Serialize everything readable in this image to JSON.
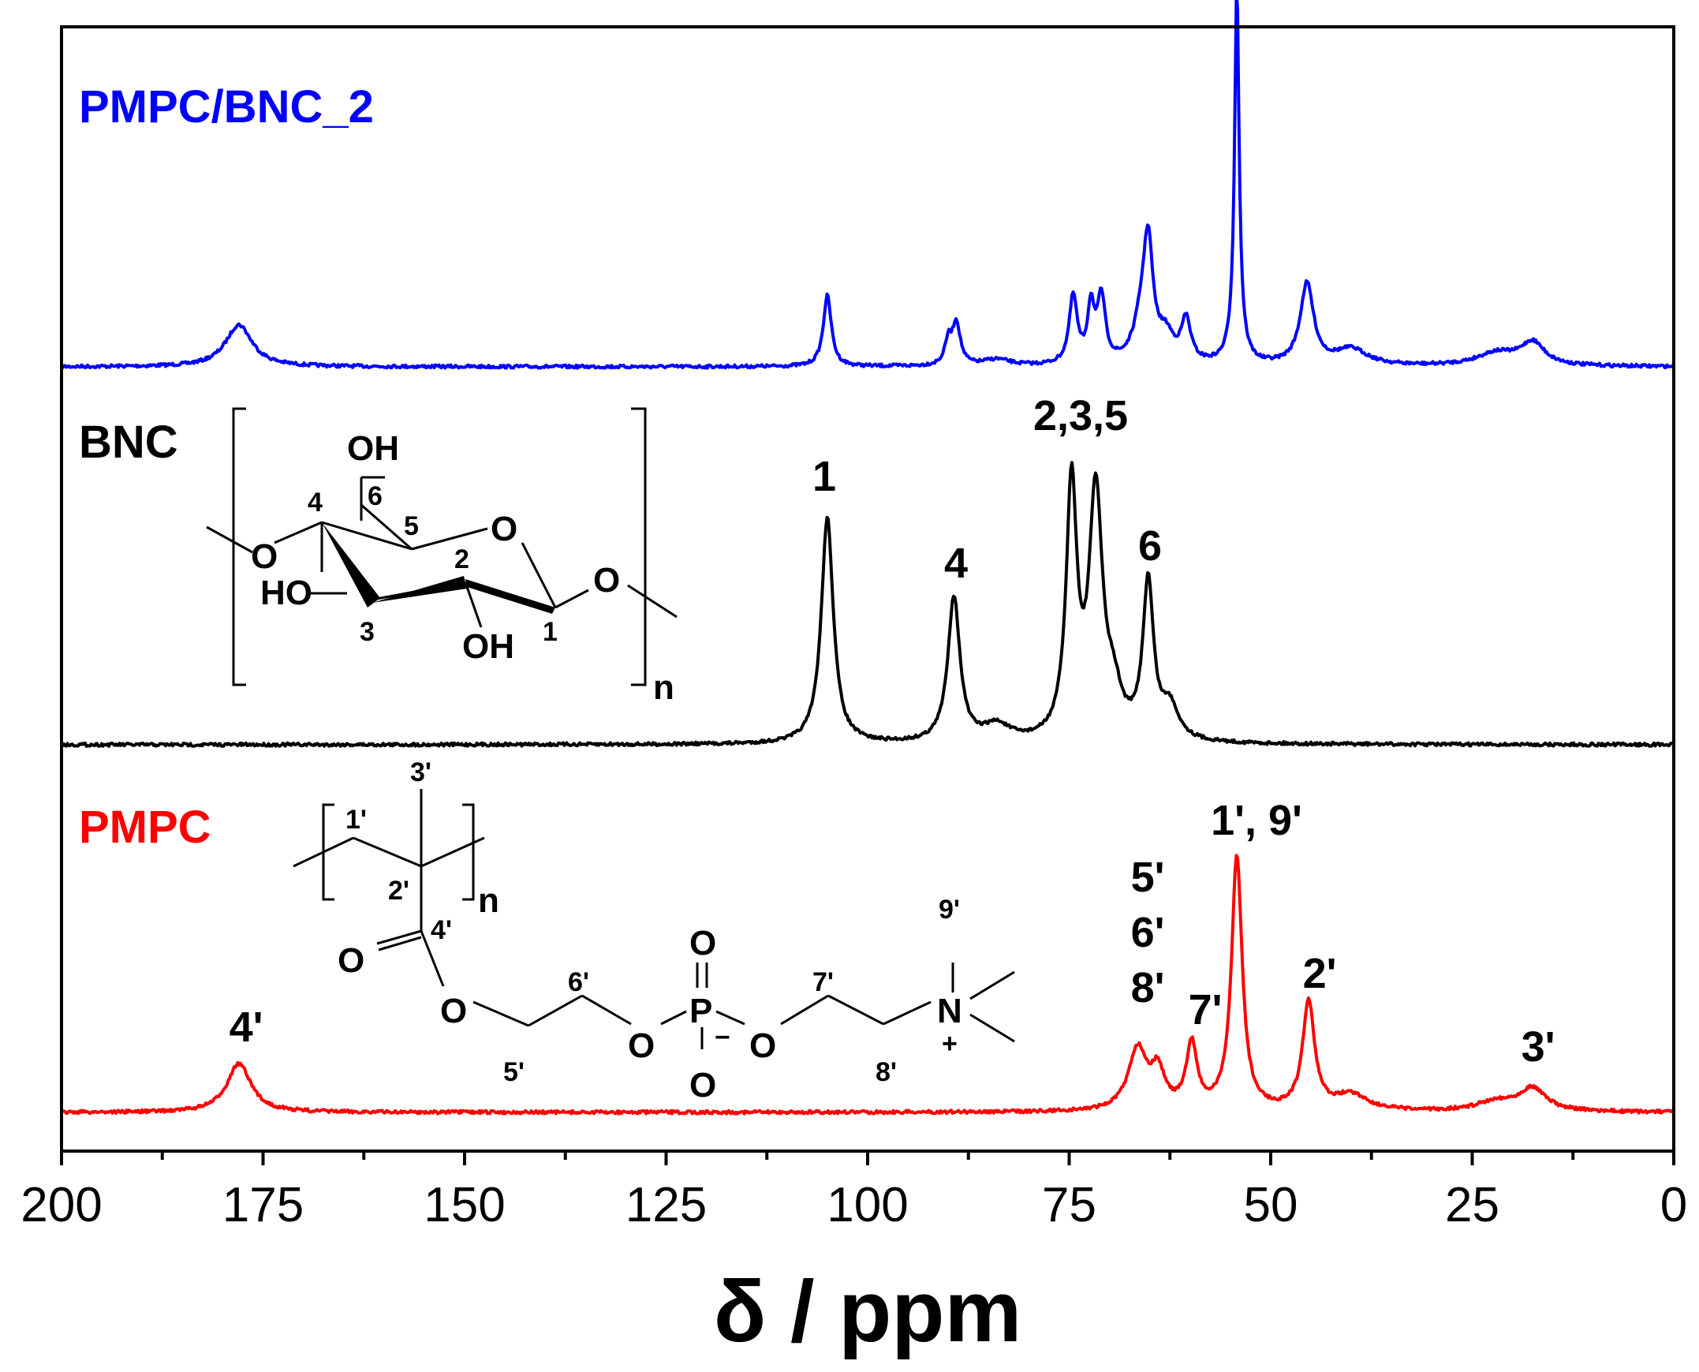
{
  "chart_data": {
    "type": "line",
    "xlabel": "δ / ppm",
    "xlim": [
      200,
      0
    ],
    "x_reversed": true,
    "xticks": [
      "200",
      "175",
      "150",
      "125",
      "100",
      "75",
      "50",
      "25",
      "0"
    ],
    "xtick_values": [
      200,
      175,
      150,
      125,
      100,
      75,
      50,
      25,
      0
    ],
    "y_axis_shown": false,
    "legend": "none",
    "series": [
      {
        "name": "PMPC/BNC_2",
        "color": "#0000ff",
        "peaks": [
          {
            "ppm": 178,
            "height": 0.13,
            "width": 2.0
          },
          {
            "ppm": 105,
            "height": 0.22,
            "width": 0.6
          },
          {
            "ppm": 89,
            "height": 0.13,
            "width": 0.6
          },
          {
            "ppm": 90,
            "height": 0.07,
            "width": 0.5
          },
          {
            "ppm": 84,
            "height": 0.02,
            "width": 2.0
          },
          {
            "ppm": 74.5,
            "height": 0.21,
            "width": 0.6
          },
          {
            "ppm": 72.3,
            "height": 0.17,
            "width": 0.5
          },
          {
            "ppm": 71.0,
            "height": 0.2,
            "width": 0.6
          },
          {
            "ppm": 66,
            "height": 0.12,
            "width": 1.2
          },
          {
            "ppm": 65.2,
            "height": 0.33,
            "width": 0.7
          },
          {
            "ppm": 63,
            "height": 0.08,
            "width": 1.2
          },
          {
            "ppm": 60.5,
            "height": 0.13,
            "width": 0.7
          },
          {
            "ppm": 54.2,
            "height": 0.98,
            "width": 0.3
          },
          {
            "ppm": 54.2,
            "height": 0.2,
            "width": 0.7
          },
          {
            "ppm": 45.5,
            "height": 0.25,
            "width": 1.0
          },
          {
            "ppm": 40,
            "height": 0.05,
            "width": 2.5
          },
          {
            "ppm": 22,
            "height": 0.04,
            "width": 3.0
          },
          {
            "ppm": 17.5,
            "height": 0.07,
            "width": 1.8
          }
        ]
      },
      {
        "name": "BNC",
        "color": "#000000",
        "peaks": [
          {
            "ppm": 105,
            "height": 0.7,
            "width": 0.9
          },
          {
            "ppm": 89.3,
            "height": 0.45,
            "width": 0.9
          },
          {
            "ppm": 84,
            "height": 0.05,
            "width": 2.0
          },
          {
            "ppm": 74.7,
            "height": 0.78,
            "width": 0.8
          },
          {
            "ppm": 71.7,
            "height": 0.75,
            "width": 1.0
          },
          {
            "ppm": 69.5,
            "height": 0.12,
            "width": 1.2
          },
          {
            "ppm": 65.2,
            "height": 0.48,
            "width": 0.8
          },
          {
            "ppm": 62.5,
            "height": 0.1,
            "width": 1.3
          }
        ]
      },
      {
        "name": "PMPC",
        "color": "#ff0000",
        "peaks": [
          {
            "ppm": 178,
            "height": 0.15,
            "width": 1.8
          },
          {
            "ppm": 66.5,
            "height": 0.19,
            "width": 1.4
          },
          {
            "ppm": 64.0,
            "height": 0.11,
            "width": 1.0
          },
          {
            "ppm": 59.8,
            "height": 0.2,
            "width": 0.8
          },
          {
            "ppm": 54.2,
            "height": 0.78,
            "width": 0.8
          },
          {
            "ppm": 45.3,
            "height": 0.33,
            "width": 0.9
          },
          {
            "ppm": 40,
            "height": 0.05,
            "width": 2.5
          },
          {
            "ppm": 22,
            "height": 0.03,
            "width": 3.0
          },
          {
            "ppm": 17.5,
            "height": 0.07,
            "width": 2.0
          }
        ]
      }
    ],
    "peak_annotations": [
      {
        "series": "BNC",
        "ppm": 105,
        "label": "1"
      },
      {
        "series": "BNC",
        "ppm": 89.3,
        "label": "4"
      },
      {
        "series": "BNC",
        "ppm": 73,
        "label": "2,3,5"
      },
      {
        "series": "BNC",
        "ppm": 65.2,
        "label": "6"
      },
      {
        "series": "PMPC",
        "ppm": 178,
        "label": "4'"
      },
      {
        "series": "PMPC",
        "ppm": 66,
        "label": "5'"
      },
      {
        "series": "PMPC",
        "ppm": 66,
        "label": "6'"
      },
      {
        "series": "PMPC",
        "ppm": 66,
        "label": "8'"
      },
      {
        "series": "PMPC",
        "ppm": 59.8,
        "label": "7'"
      },
      {
        "series": "PMPC",
        "ppm": 54.2,
        "label": "1', 9'"
      },
      {
        "series": "PMPC",
        "ppm": 45.3,
        "label": "2'"
      },
      {
        "series": "PMPC",
        "ppm": 17.5,
        "label": "3'"
      }
    ],
    "structures": {
      "bnc": {
        "atoms": {
          "oh_top": "OH",
          "ring_o": "O",
          "o_left": "O",
          "o_right": "O",
          "ho": "HO",
          "oh_bottom": "OH"
        },
        "numbers": {
          "c1": "1",
          "c2": "2",
          "c3": "3",
          "c4": "4",
          "c5": "5",
          "c6": "6"
        },
        "repeat": "n"
      },
      "pmpc": {
        "atoms": {
          "carbonyl_o": "O",
          "ester_o": "O",
          "o_p_left": "O",
          "p": "P",
          "p_o_top": "O",
          "p_o_bottom": "O",
          "o_p_right": "O",
          "n": "N",
          "plus": "+",
          "minus": "−"
        },
        "numbers": {
          "c1": "1'",
          "c2": "2'",
          "c3": "3'",
          "c4": "4'",
          "c5": "5'",
          "c6": "6'",
          "c7": "7'",
          "c8": "8'",
          "c9": "9'"
        },
        "repeat": "n"
      }
    }
  }
}
